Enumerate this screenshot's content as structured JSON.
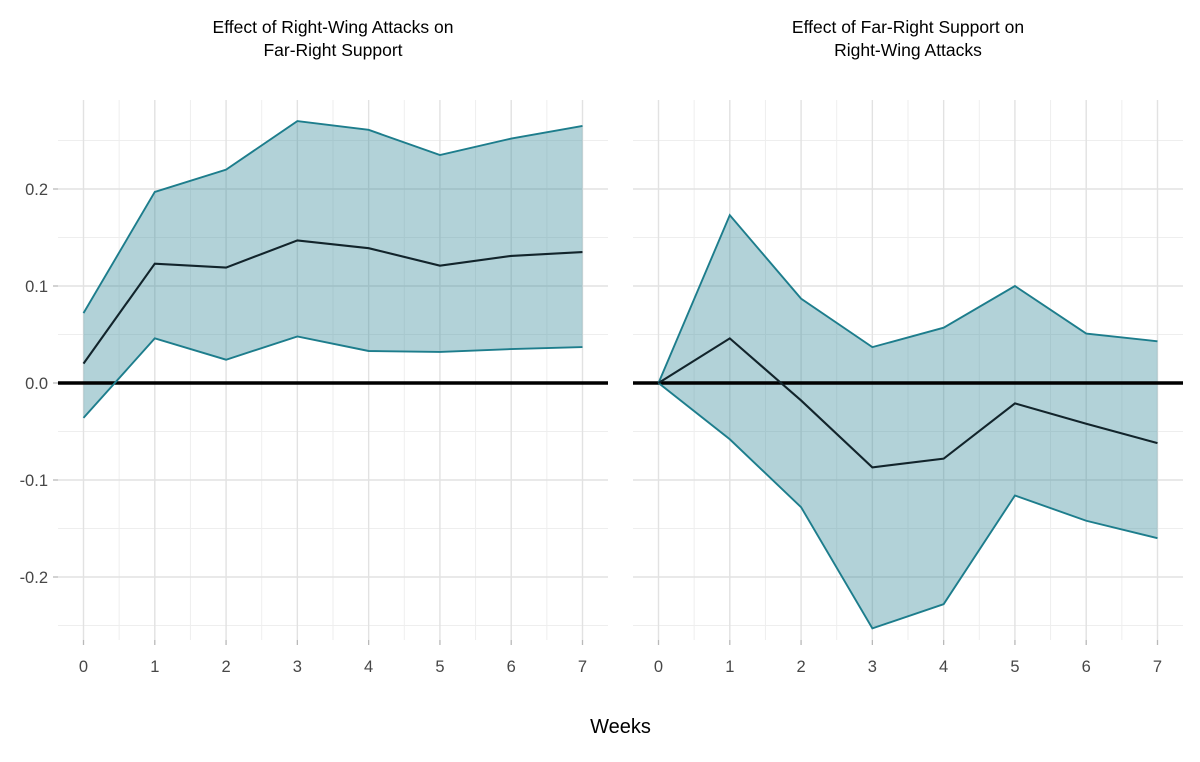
{
  "chart_data": {
    "type": "line",
    "x": [
      0,
      1,
      2,
      3,
      4,
      5,
      6,
      7
    ],
    "x_tick_labels": [
      "0",
      "1",
      "2",
      "3",
      "4",
      "5",
      "6",
      "7"
    ],
    "xlabel": "Weeks",
    "y_ticks": [
      {
        "value": 0.2,
        "label": "0.2"
      },
      {
        "value": 0.1,
        "label": "0.1"
      },
      {
        "value": 0.0,
        "label": "0.0"
      },
      {
        "value": -0.1,
        "label": "-0.1"
      },
      {
        "value": -0.2,
        "label": "-0.2"
      }
    ],
    "y_minor_gridlines": [
      0.25,
      0.15,
      0.05,
      -0.05,
      -0.15,
      -0.25
    ],
    "x_minor_gridlines": [
      0.5,
      1.5,
      2.5,
      3.5,
      4.5,
      5.5,
      6.5
    ],
    "ylim": [
      -0.28,
      0.295
    ],
    "grid": "major and minor, light gray on white",
    "legend": "none",
    "reference_line_y": 0,
    "panels": [
      {
        "title": "Effect of Right-Wing Attacks on\nFar-Right Support",
        "series": [
          {
            "name": "estimate",
            "values": [
              0.02,
              0.123,
              0.119,
              0.147,
              0.139,
              0.121,
              0.131,
              0.135
            ]
          },
          {
            "name": "upper_ci",
            "values": [
              0.072,
              0.197,
              0.22,
              0.27,
              0.261,
              0.235,
              0.252,
              0.265
            ]
          },
          {
            "name": "lower_ci",
            "values": [
              -0.036,
              0.046,
              0.024,
              0.048,
              0.033,
              0.032,
              0.035,
              0.037
            ]
          }
        ]
      },
      {
        "title": "Effect of Far-Right Support on\nRight-Wing Attacks",
        "series": [
          {
            "name": "estimate",
            "values": [
              0.0,
              0.046,
              -0.018,
              -0.087,
              -0.078,
              -0.021,
              -0.042,
              -0.062
            ]
          },
          {
            "name": "upper_ci",
            "values": [
              0.0,
              0.173,
              0.087,
              0.037,
              0.057,
              0.1,
              0.051,
              0.043
            ]
          },
          {
            "name": "lower_ci",
            "values": [
              0.0,
              -0.058,
              -0.128,
              -0.253,
              -0.228,
              -0.116,
              -0.142,
              -0.16
            ]
          }
        ]
      }
    ],
    "colors": {
      "band_fill": "#b2d4da",
      "band_edge": "#1d7d8c",
      "estimate_line": "#12242b",
      "zero_line": "#000000",
      "grid_major": "#e2e2e2",
      "grid_minor": "#eeeeee",
      "axis_text": "#474747",
      "tick_mark": "#b9b9b9",
      "title_text": "#000000"
    }
  }
}
